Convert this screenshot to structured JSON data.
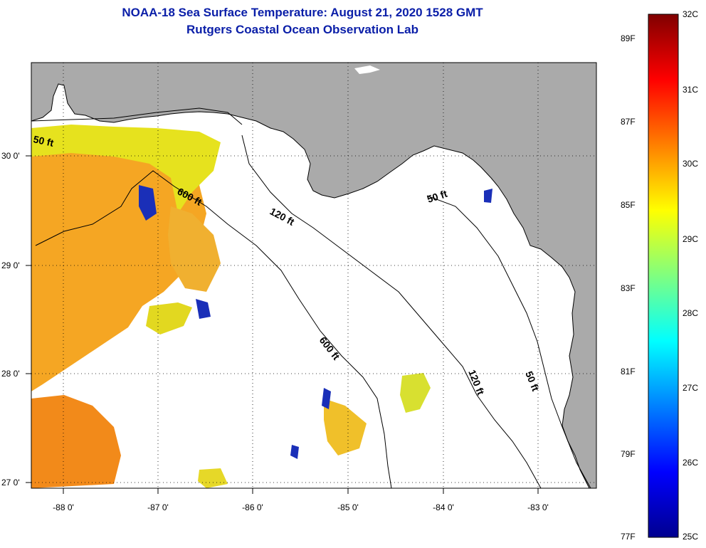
{
  "title": {
    "line1": "NOAA-18 Sea Surface Temperature:  August 21, 2020 1528 GMT",
    "line2": "Rutgers Coastal Ocean Observation Lab"
  },
  "map": {
    "lon_labels": [
      "-88 0'",
      "-87 0'",
      "-86 0'",
      "-85 0'",
      "-84 0'",
      "-83 0'"
    ],
    "lat_labels": [
      "30 0'",
      "29 0'",
      "28 0'",
      "27 0'"
    ],
    "contours": [
      "50 ft",
      "600 ft",
      "120 ft",
      "50 ft",
      "600 ft",
      "120 ft",
      "50 ft"
    ],
    "colors": {
      "land": "#aaaaaa",
      "water": "#ffffff",
      "coast": "#000000"
    }
  },
  "colorbar": {
    "fahrenheit": [
      "89F",
      "87F",
      "85F",
      "83F",
      "81F",
      "79F",
      "77F"
    ],
    "celsius": [
      "32C",
      "31C",
      "30C",
      "29C",
      "28C",
      "27C",
      "26C",
      "25C"
    ]
  }
}
